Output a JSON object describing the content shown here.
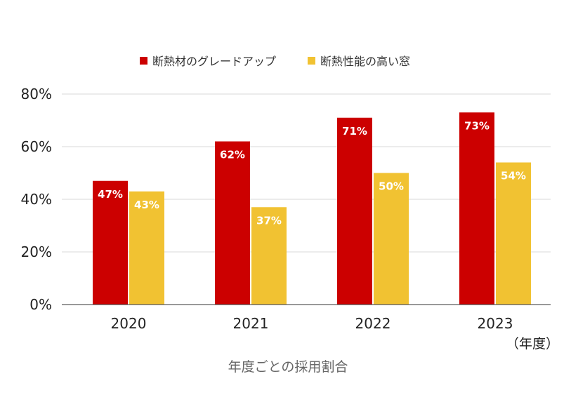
{
  "chart_data": {
    "type": "bar",
    "categories": [
      "2020",
      "2021",
      "2022",
      "2023"
    ],
    "series": [
      {
        "name": "断熱材のグレードアップ",
        "values": [
          47,
          62,
          71,
          73
        ],
        "color": "#cc0000"
      },
      {
        "name": "断熱性能の高い窓",
        "values": [
          43,
          37,
          50,
          54
        ],
        "color": "#f1c232"
      }
    ],
    "data_labels": [
      [
        "47%",
        "62%",
        "71%",
        "73%"
      ],
      [
        "43%",
        "37%",
        "50%",
        "54%"
      ]
    ],
    "yticks": [
      "0%",
      "20%",
      "40%",
      "60%",
      "80%"
    ],
    "ylim": [
      0,
      80
    ],
    "unit_label": "（年度）",
    "xlabel": "年度ごとの採用割合",
    "legend_position": "top-center",
    "grid": true
  }
}
